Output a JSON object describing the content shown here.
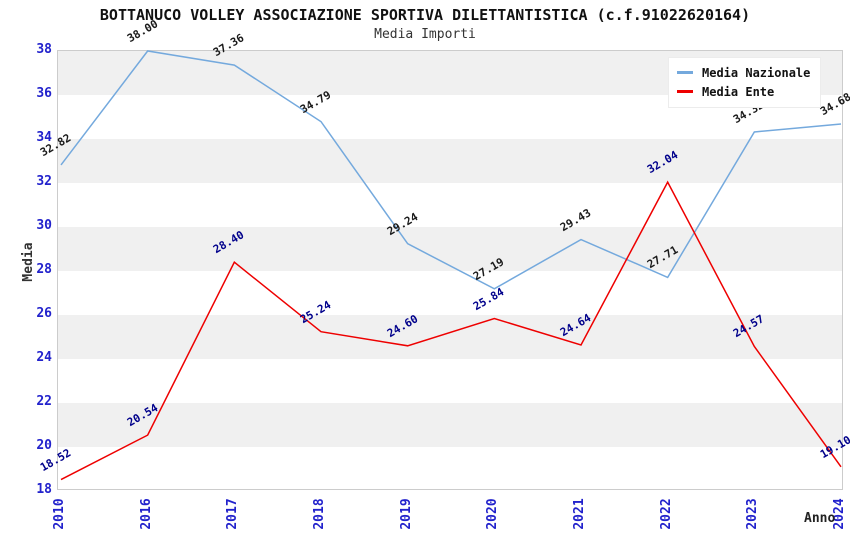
{
  "header": {
    "title": "BOTTANUCO VOLLEY ASSOCIAZIONE SPORTIVA DILETTANTISTICA (c.f.91022620164)",
    "subtitle": "Media Importi"
  },
  "chart_data": {
    "type": "line",
    "title": "BOTTANUCO VOLLEY ASSOCIAZIONE SPORTIVA DILETTANTISTICA (c.f.91022620164)",
    "subtitle": "Media Importi",
    "xlabel": "Anno",
    "ylabel": "Media",
    "categories": [
      "2010",
      "2016",
      "2017",
      "2018",
      "2019",
      "2020",
      "2021",
      "2022",
      "2023",
      "2024"
    ],
    "ylim": [
      18,
      38
    ],
    "ytick_step": 2,
    "grid": "horizontal-bands",
    "band_color": "#f0f0f0",
    "tick_color": "#2222cc",
    "legend_position": "top-right",
    "series": [
      {
        "name": "Media Nazionale",
        "color": "#74a9dd",
        "label_color": "#1a1a1a",
        "values": [
          32.82,
          38.0,
          37.36,
          34.79,
          29.24,
          27.19,
          29.43,
          27.71,
          34.32,
          34.68
        ]
      },
      {
        "name": "Media Ente",
        "color": "#ee0000",
        "label_color": "#00008b",
        "values": [
          18.52,
          20.54,
          28.4,
          25.24,
          24.6,
          25.84,
          24.64,
          32.04,
          24.57,
          19.1
        ]
      }
    ]
  }
}
